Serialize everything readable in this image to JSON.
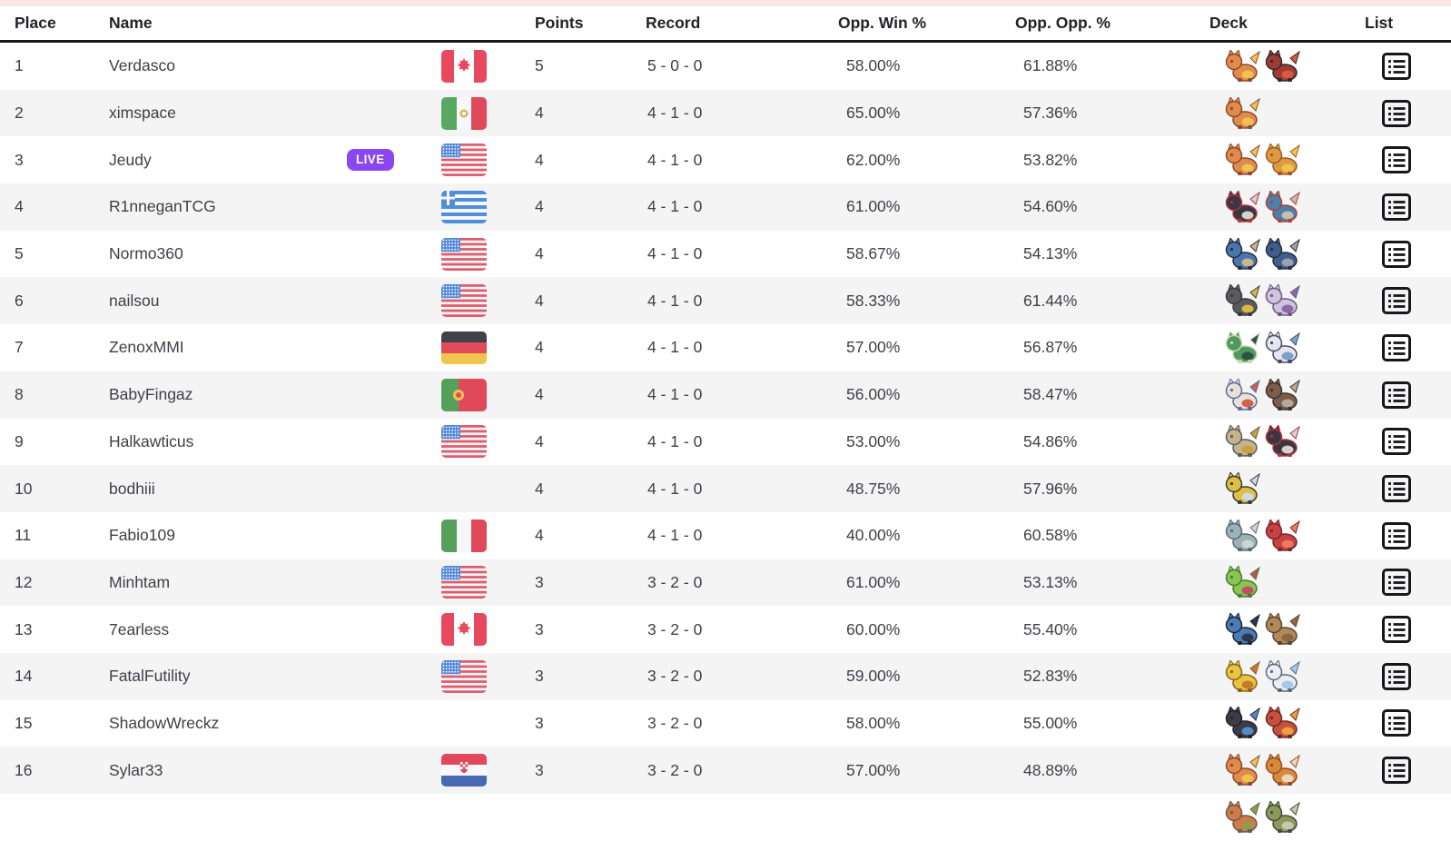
{
  "page": {
    "top_strip_color": "#fbe7e7",
    "row_alt_color": "#f4f4f5",
    "header_border_color": "#17171b",
    "live_badge_color": "#8b46f2",
    "text_color": "#3f3f46"
  },
  "table": {
    "columns": {
      "place": "Place",
      "name": "Name",
      "points": "Points",
      "record": "Record",
      "opp_win": "Opp. Win %",
      "opp_opp": "Opp. Opp. %",
      "deck": "Deck",
      "list": "List"
    },
    "live_badge_label": "LIVE",
    "rows": [
      {
        "place": "1",
        "name": "Verdasco",
        "live": false,
        "country": "CA",
        "points": "5",
        "record": "5 - 0 - 0",
        "opp_win": "58.00%",
        "opp_opp": "61.88%",
        "list": true,
        "deck": [
          {
            "name": "charmeleon",
            "colors": [
              "#e08a4c",
              "#f2c24e",
              "#8a4a2e"
            ]
          },
          {
            "name": "incineroar",
            "colors": [
              "#a03a32",
              "#d85a40",
              "#2e2a2e"
            ]
          }
        ]
      },
      {
        "place": "2",
        "name": "ximspace",
        "live": false,
        "country": "MX",
        "points": "4",
        "record": "4 - 1 - 0",
        "opp_win": "65.00%",
        "opp_opp": "57.36%",
        "list": true,
        "deck": [
          {
            "name": "charmeleon",
            "colors": [
              "#e08a4c",
              "#f2c24e",
              "#8a4a2e"
            ]
          }
        ]
      },
      {
        "place": "3",
        "name": "Jeudy",
        "live": true,
        "country": "US",
        "points": "4",
        "record": "4 - 1 - 0",
        "opp_win": "62.00%",
        "opp_opp": "53.82%",
        "list": true,
        "deck": [
          {
            "name": "charmeleon",
            "colors": [
              "#e08a4c",
              "#f2c24e",
              "#8a4a2e"
            ]
          },
          {
            "name": "moltres",
            "colors": [
              "#e09a3e",
              "#f2c24e",
              "#9a5a2a"
            ]
          }
        ]
      },
      {
        "place": "4",
        "name": "R1nneganTCG",
        "live": false,
        "country": "GR",
        "points": "4",
        "record": "4 - 1 - 0",
        "opp_win": "61.00%",
        "opp_opp": "54.60%",
        "list": true,
        "deck": [
          {
            "name": "darkrai",
            "colors": [
              "#3a3642",
              "#d8d2c8",
              "#b03440"
            ]
          },
          {
            "name": "salamence",
            "colors": [
              "#4a80aa",
              "#c8beae",
              "#b04038"
            ]
          }
        ]
      },
      {
        "place": "5",
        "name": "Normo360",
        "live": false,
        "country": "US",
        "points": "4",
        "record": "4 - 1 - 0",
        "opp_win": "58.67%",
        "opp_opp": "54.13%",
        "list": true,
        "deck": [
          {
            "name": "lucario",
            "colors": [
              "#4a76b0",
              "#cbb88a",
              "#2c2c38"
            ]
          },
          {
            "name": "garchomp",
            "colors": [
              "#3e5e8e",
              "#9aa2ae",
              "#26303e"
            ]
          }
        ]
      },
      {
        "place": "6",
        "name": "nailsou",
        "live": false,
        "country": "US",
        "points": "4",
        "record": "4 - 1 - 0",
        "opp_win": "58.33%",
        "opp_opp": "61.44%",
        "list": true,
        "deck": [
          {
            "name": "banette",
            "colors": [
              "#5a5a60",
              "#d8b83e",
              "#39393e"
            ]
          },
          {
            "name": "mewtwo",
            "colors": [
              "#cfc3dd",
              "#8a6aaa",
              "#6a5a80"
            ]
          }
        ]
      },
      {
        "place": "7",
        "name": "ZenoxMMI",
        "live": false,
        "country": "DE",
        "points": "4",
        "record": "4 - 1 - 0",
        "opp_win": "57.00%",
        "opp_opp": "56.87%",
        "list": true,
        "deck": [
          {
            "name": "meowscarada",
            "colors": [
              "#4e9a5e",
              "#2e5240",
              "#c8d8b0"
            ]
          },
          {
            "name": "butterfree",
            "colors": [
              "#e6e6f0",
              "#7aa2cc",
              "#4a4a66"
            ]
          }
        ]
      },
      {
        "place": "8",
        "name": "BabyFingaz",
        "live": false,
        "country": "PT",
        "points": "4",
        "record": "4 - 1 - 0",
        "opp_win": "56.00%",
        "opp_opp": "58.47%",
        "list": true,
        "deck": [
          {
            "name": "solgaleo",
            "colors": [
              "#e8e2d6",
              "#d0604e",
              "#5a6a9a"
            ]
          },
          {
            "name": "excadrill",
            "colors": [
              "#7e5c4a",
              "#b8aa9a",
              "#3c322c"
            ]
          }
        ]
      },
      {
        "place": "9",
        "name": "Halkawticus",
        "live": false,
        "country": "US",
        "points": "4",
        "record": "4 - 1 - 0",
        "opp_win": "53.00%",
        "opp_opp": "54.86%",
        "list": true,
        "deck": [
          {
            "name": "giratina",
            "colors": [
              "#c4b48e",
              "#c8a040",
              "#5e5a54"
            ]
          },
          {
            "name": "darkrai",
            "colors": [
              "#3a3642",
              "#d8d2c8",
              "#b03440"
            ]
          }
        ]
      },
      {
        "place": "10",
        "name": "bodhiii",
        "live": false,
        "country": null,
        "points": "4",
        "record": "4 - 1 - 0",
        "opp_win": "48.75%",
        "opp_opp": "57.96%",
        "list": true,
        "deck": [
          {
            "name": "beedrill",
            "colors": [
              "#e0be42",
              "#cdd8ea",
              "#3a3a3a"
            ]
          }
        ]
      },
      {
        "place": "11",
        "name": "Fabio109",
        "live": false,
        "country": "IT",
        "points": "4",
        "record": "4 - 1 - 0",
        "opp_win": "40.00%",
        "opp_opp": "60.58%",
        "list": true,
        "deck": [
          {
            "name": "bronzong",
            "colors": [
              "#9cb2ba",
              "#ccd4d8",
              "#5a6a70"
            ]
          },
          {
            "name": "octillery",
            "colors": [
              "#c84040",
              "#e87a62",
              "#7a2828"
            ]
          }
        ]
      },
      {
        "place": "12",
        "name": "Minhtam",
        "live": false,
        "country": "US",
        "points": "3",
        "record": "3 - 2 - 0",
        "opp_win": "61.00%",
        "opp_opp": "53.13%",
        "list": true,
        "deck": [
          {
            "name": "steenee",
            "colors": [
              "#8cc450",
              "#c05060",
              "#4a7a36"
            ]
          }
        ]
      },
      {
        "place": "13",
        "name": "7earless",
        "live": false,
        "country": "CA",
        "points": "3",
        "record": "3 - 2 - 0",
        "opp_win": "60.00%",
        "opp_opp": "55.40%",
        "list": true,
        "deck": [
          {
            "name": "riolu",
            "colors": [
              "#4a7ab8",
              "#2c3848",
              "#1e2630"
            ]
          },
          {
            "name": "hitmonchan",
            "colors": [
              "#b28a58",
              "#8a6840",
              "#5a4430"
            ]
          }
        ]
      },
      {
        "place": "14",
        "name": "FatalFutility",
        "live": false,
        "country": "US",
        "points": "3",
        "record": "3 - 2 - 0",
        "opp_win": "59.00%",
        "opp_opp": "52.83%",
        "list": true,
        "deck": [
          {
            "name": "pikachu",
            "colors": [
              "#e8c53e",
              "#c87a2e",
              "#8a6020"
            ]
          },
          {
            "name": "pachirisu",
            "colors": [
              "#eceef2",
              "#a8c8e8",
              "#586a7a"
            ]
          }
        ]
      },
      {
        "place": "15",
        "name": "ShadowWreckz",
        "live": false,
        "country": null,
        "points": "3",
        "record": "3 - 2 - 0",
        "opp_win": "58.00%",
        "opp_opp": "55.00%",
        "list": true,
        "deck": [
          {
            "name": "luxray",
            "colors": [
              "#3c3c46",
              "#5a8ac8",
              "#23232b"
            ]
          },
          {
            "name": "fletchinder",
            "colors": [
              "#c8503c",
              "#e8a040",
              "#6a2a22"
            ]
          }
        ]
      },
      {
        "place": "16",
        "name": "Sylar33",
        "live": false,
        "country": "HR",
        "points": "3",
        "record": "3 - 2 - 0",
        "opp_win": "57.00%",
        "opp_opp": "48.89%",
        "list": true,
        "deck": [
          {
            "name": "charmeleon",
            "colors": [
              "#e08a4c",
              "#f2c24e",
              "#8a4a2e"
            ]
          },
          {
            "name": "infernape",
            "colors": [
              "#d88a3c",
              "#e8d8c0",
              "#9a4a20"
            ]
          }
        ]
      },
      {
        "place": "",
        "name": "",
        "live": false,
        "country": null,
        "points": "",
        "record": "",
        "opp_win": "",
        "opp_opp": "",
        "list": false,
        "partial": true,
        "deck": [
          {
            "name": "unknown-pokemon",
            "colors": [
              "#d07a4a",
              "#8aa04a",
              "#6a5a4a"
            ]
          },
          {
            "name": "unknown-pokemon",
            "colors": [
              "#8a9a5a",
              "#c8c8b0",
              "#4a4a3a"
            ]
          }
        ]
      }
    ]
  }
}
